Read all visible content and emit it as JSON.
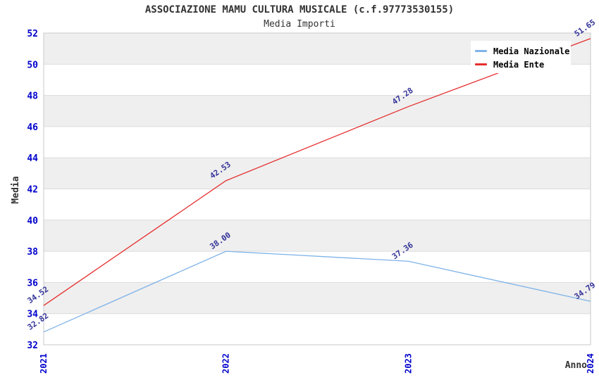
{
  "header": {
    "title": "ASSOCIAZIONE MAMU CULTURA MUSICALE (c.f.97773530155)",
    "subtitle": "Media Importi"
  },
  "chart_data": {
    "type": "line",
    "x": [
      "2021",
      "2022",
      "2023",
      "2024"
    ],
    "series": [
      {
        "name": "Media Nazionale",
        "color": "#7FB3E8",
        "values": [
          32.82,
          38.0,
          37.36,
          34.79
        ]
      },
      {
        "name": "Media Ente",
        "color": "#E62E2E",
        "values": [
          34.52,
          42.53,
          47.28,
          51.65
        ]
      }
    ],
    "xlabel": "Anno",
    "ylabel": "Media",
    "ylim": [
      32,
      52
    ],
    "yticks": [
      32,
      34,
      36,
      38,
      40,
      42,
      44,
      46,
      48,
      50,
      52
    ],
    "grid": true,
    "legend_position": "top-right",
    "colors": {
      "band_fill": "#EFEFEF",
      "row_fill": "#FFFFFF",
      "grid_line": "#DCDCDC",
      "plot_border": "#C8C8C8",
      "tick_label": "#0000CC",
      "data_label": "#333399",
      "title_text": "#333333"
    }
  }
}
